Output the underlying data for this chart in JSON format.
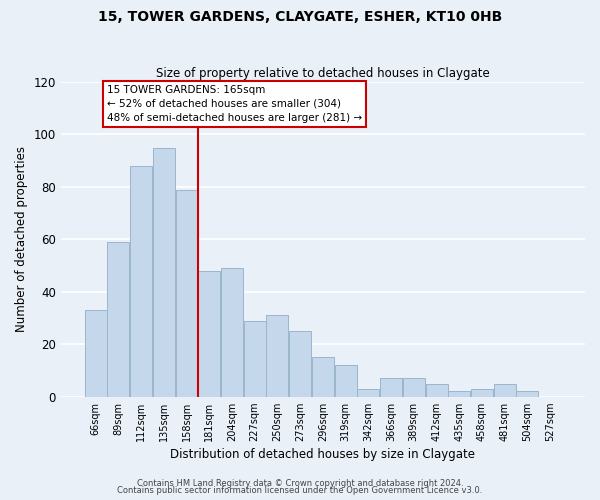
{
  "title": "15, TOWER GARDENS, CLAYGATE, ESHER, KT10 0HB",
  "subtitle": "Size of property relative to detached houses in Claygate",
  "xlabel": "Distribution of detached houses by size in Claygate",
  "ylabel": "Number of detached properties",
  "bar_color": "#c5d8eb",
  "bar_edge_color": "#9ab5cc",
  "grid_color": "#e0e8f0",
  "bg_color": "#eaf0f8",
  "categories": [
    "66sqm",
    "89sqm",
    "112sqm",
    "135sqm",
    "158sqm",
    "181sqm",
    "204sqm",
    "227sqm",
    "250sqm",
    "273sqm",
    "296sqm",
    "319sqm",
    "342sqm",
    "366sqm",
    "389sqm",
    "412sqm",
    "435sqm",
    "458sqm",
    "481sqm",
    "504sqm",
    "527sqm"
  ],
  "values": [
    33,
    59,
    88,
    95,
    79,
    48,
    49,
    29,
    31,
    25,
    15,
    12,
    3,
    7,
    7,
    5,
    2,
    3,
    5,
    2,
    0
  ],
  "ylim": [
    0,
    120
  ],
  "yticks": [
    0,
    20,
    40,
    60,
    80,
    100,
    120
  ],
  "vline_x": 4.5,
  "vline_color": "#cc0000",
  "annotation_text": "15 TOWER GARDENS: 165sqm\n← 52% of detached houses are smaller (304)\n48% of semi-detached houses are larger (281) →",
  "annotation_box_color": "#ffffff",
  "annotation_box_edge_color": "#cc0000",
  "footer_line1": "Contains HM Land Registry data © Crown copyright and database right 2024.",
  "footer_line2": "Contains public sector information licensed under the Open Government Licence v3.0."
}
